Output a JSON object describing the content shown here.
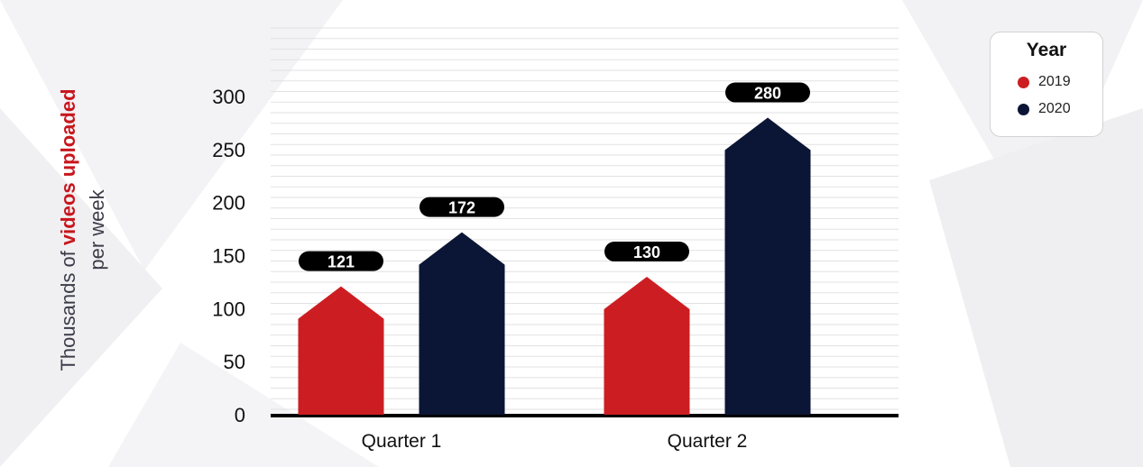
{
  "chart_data": {
    "type": "bar",
    "categories": [
      "Quarter 1",
      "Quarter 2"
    ],
    "series": [
      {
        "name": "2019",
        "values": [
          121,
          130
        ],
        "color": "#cc1e22"
      },
      {
        "name": "2020",
        "values": [
          172,
          280
        ],
        "color": "#0b1535"
      }
    ],
    "ylabel_prefix": "Thousands of",
    "ylabel_emphasis": "videos uploaded",
    "ylabel_suffix": "per week",
    "yticks": [
      0,
      50,
      100,
      150,
      200,
      250,
      300
    ],
    "ylim": [
      0,
      300
    ],
    "grid": true,
    "legend": {
      "title": "Year",
      "placement": "top-right"
    }
  }
}
